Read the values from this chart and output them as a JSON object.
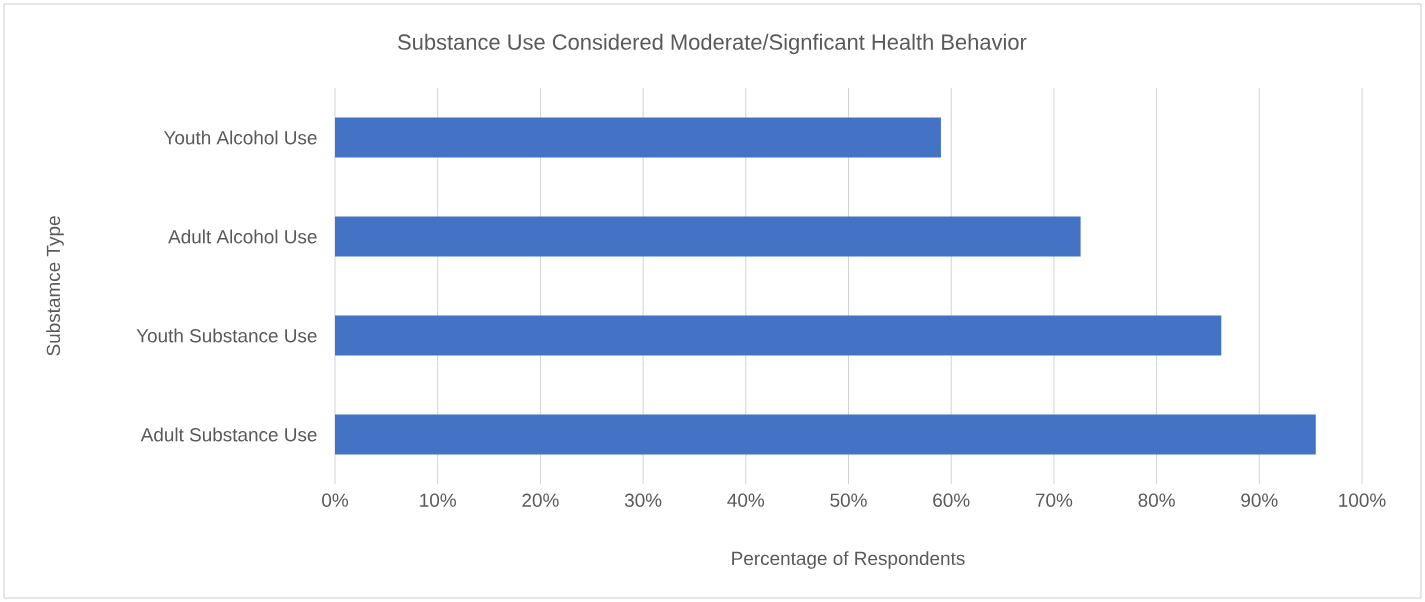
{
  "chart_data": {
    "type": "bar",
    "orientation": "horizontal",
    "title": "Substance Use Considered Moderate/Signficant Health Behavior",
    "xlabel": "Percentage of Respondents",
    "ylabel": "Substamce Type",
    "categories": [
      "Youth Alcohol Use",
      "Adult Alcohol Use",
      "Youth Substance Use",
      "Adult Substance Use"
    ],
    "values": [
      59.0,
      72.6,
      86.3,
      95.5
    ],
    "color": "#4472c4",
    "xlim": [
      0,
      100
    ],
    "xticks": [
      {
        "value": 0,
        "label": "0%"
      },
      {
        "value": 10,
        "label": "10%"
      },
      {
        "value": 20,
        "label": "20%"
      },
      {
        "value": 30,
        "label": "30%"
      },
      {
        "value": 40,
        "label": "40%"
      },
      {
        "value": 50,
        "label": "50%"
      },
      {
        "value": 60,
        "label": "60%"
      },
      {
        "value": 70,
        "label": "70%"
      },
      {
        "value": 80,
        "label": "80%"
      },
      {
        "value": 90,
        "label": "90%"
      },
      {
        "value": 100,
        "label": "100%"
      }
    ],
    "grid": "x"
  }
}
